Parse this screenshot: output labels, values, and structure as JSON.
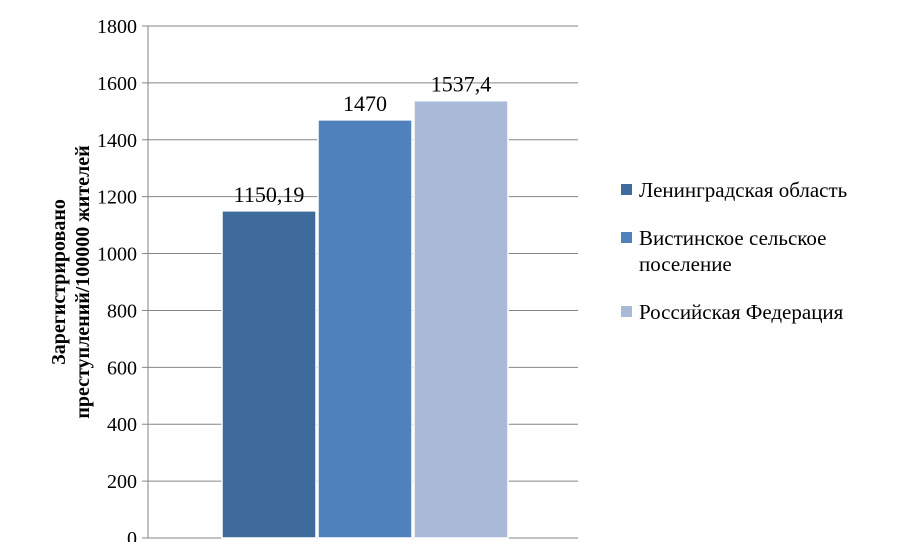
{
  "chart_data": {
    "type": "bar",
    "title": "",
    "xlabel": "",
    "ylabel": "Зарегистрировано преступлений/100000 жителей",
    "ylabel_lines": [
      "Зарегистрировано",
      "преступлений/100000 жителей"
    ],
    "ylim": [
      0,
      1800
    ],
    "yticks": [
      0,
      200,
      400,
      600,
      800,
      1000,
      1200,
      1400,
      1600,
      1800
    ],
    "grid": true,
    "legend_position": "right",
    "series": [
      {
        "name": "Ленинградская область",
        "legend_lines": [
          "Ленинградская область"
        ],
        "value": 1150.19,
        "label": "1150,19",
        "color": "#3F6A9C"
      },
      {
        "name": "Вистинское сельское поселение",
        "legend_lines": [
          "Вистинское сельское",
          "поселение"
        ],
        "value": 1470,
        "label": "1470",
        "color": "#4F81BD"
      },
      {
        "name": "Российская Федерация",
        "legend_lines": [
          "Российская Федерация"
        ],
        "value": 1537.4,
        "label": "1537,4",
        "color": "#A9BAD8"
      }
    ]
  }
}
